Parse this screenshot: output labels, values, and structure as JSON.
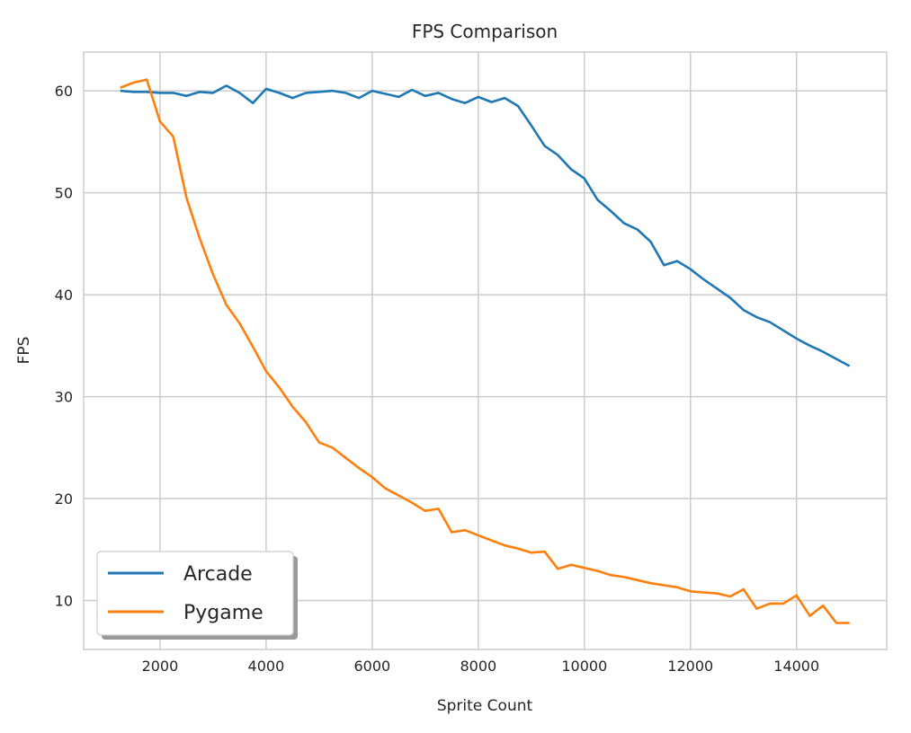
{
  "chart_data": {
    "type": "line",
    "title": "FPS Comparison",
    "xlabel": "Sprite Count",
    "ylabel": "FPS",
    "xlim": [
      560,
      15700
    ],
    "ylim": [
      5.2,
      63.8
    ],
    "xticks": [
      2000,
      4000,
      6000,
      8000,
      10000,
      12000,
      14000
    ],
    "yticks": [
      10,
      20,
      30,
      40,
      50,
      60
    ],
    "grid": true,
    "legend_position": "lower-left",
    "x": [
      1250,
      1500,
      1750,
      2000,
      2250,
      2500,
      2750,
      3000,
      3250,
      3500,
      3750,
      4000,
      4250,
      4500,
      4750,
      5000,
      5250,
      5500,
      5750,
      6000,
      6250,
      6500,
      6750,
      7000,
      7250,
      7500,
      7750,
      8000,
      8250,
      8500,
      8750,
      9000,
      9250,
      9500,
      9750,
      10000,
      10250,
      10500,
      10750,
      11000,
      11250,
      11500,
      11750,
      12000,
      12250,
      12500,
      12750,
      13000,
      13250,
      13500,
      13750,
      14000,
      14250,
      14500,
      14750,
      15000
    ],
    "series": [
      {
        "name": "Arcade",
        "color": "#1f77b4",
        "values": [
          60.0,
          59.9,
          59.9,
          59.8,
          59.8,
          59.5,
          59.9,
          59.8,
          60.5,
          59.8,
          58.8,
          60.2,
          59.8,
          59.3,
          59.8,
          59.9,
          60.0,
          59.8,
          59.3,
          60.0,
          59.7,
          59.4,
          60.1,
          59.5,
          59.8,
          59.2,
          58.8,
          59.4,
          58.9,
          59.3,
          58.5,
          56.6,
          54.6,
          53.7,
          52.3,
          51.4,
          49.3,
          48.2,
          47.0,
          46.4,
          45.2,
          42.9,
          43.3,
          42.5,
          41.5,
          40.6,
          39.7,
          38.5,
          37.8,
          37.3,
          36.5,
          35.7,
          35.0,
          34.4,
          33.7,
          33.0
        ]
      },
      {
        "name": "Pygame",
        "color": "#ff7f0e",
        "values": [
          60.3,
          60.8,
          61.1,
          57.0,
          55.5,
          49.5,
          45.5,
          42.0,
          39.0,
          37.2,
          34.9,
          32.5,
          30.9,
          29.0,
          27.5,
          25.5,
          25.0,
          24.0,
          23.0,
          22.1,
          21.0,
          20.3,
          19.6,
          18.8,
          19.0,
          16.7,
          16.9,
          16.4,
          15.9,
          15.4,
          15.1,
          14.7,
          14.8,
          13.1,
          13.5,
          13.2,
          12.9,
          12.5,
          12.3,
          12.0,
          11.7,
          11.5,
          11.3,
          10.9,
          10.8,
          10.7,
          10.4,
          11.1,
          9.2,
          9.7,
          9.7,
          10.5,
          8.5,
          9.5,
          7.8,
          7.8
        ]
      }
    ]
  }
}
